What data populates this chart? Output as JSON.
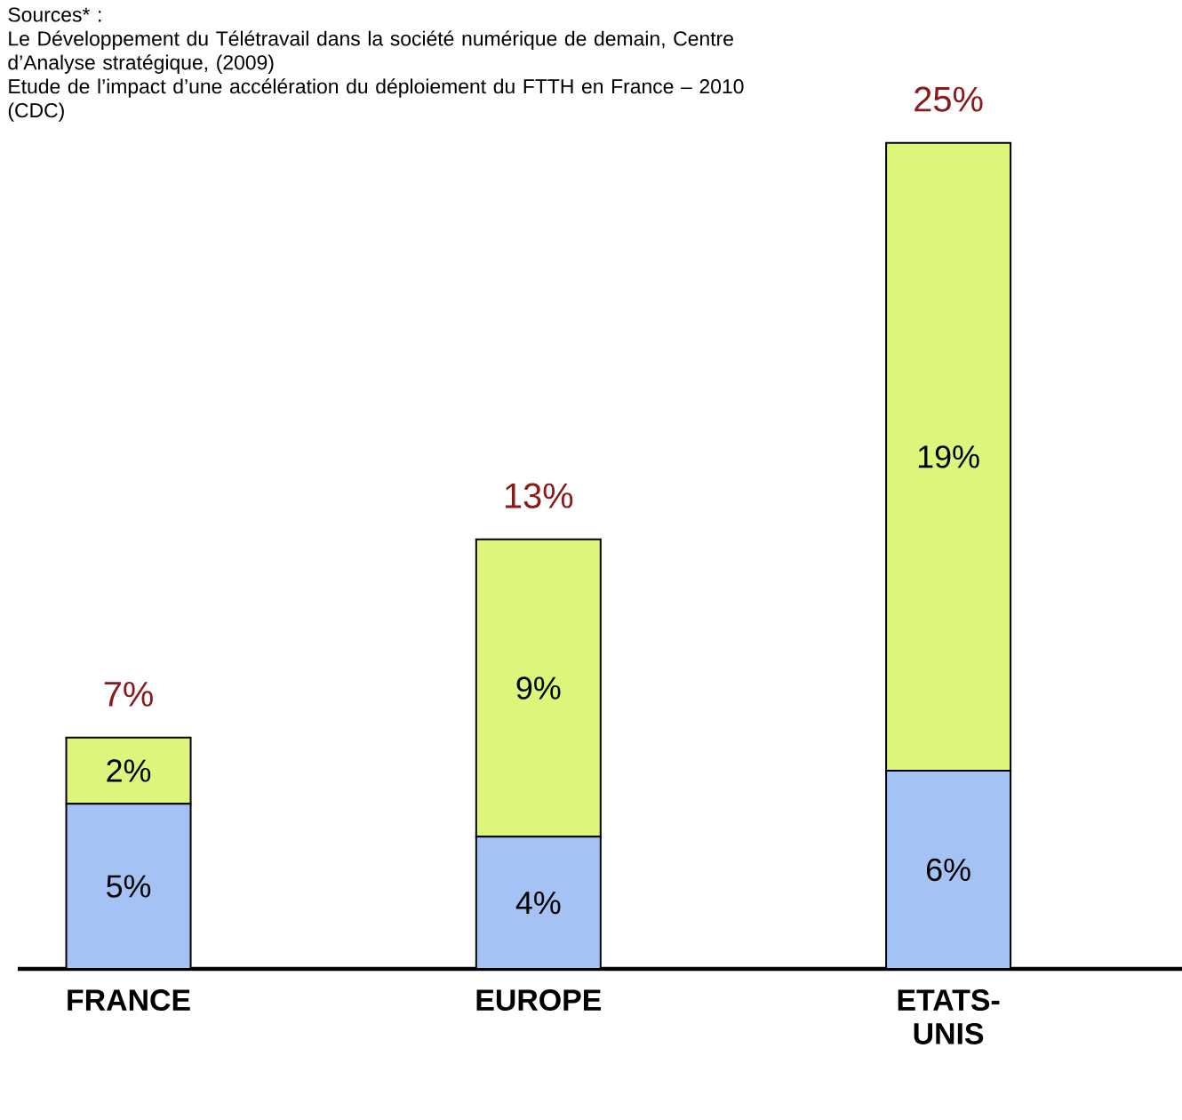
{
  "chart_data": {
    "type": "bar",
    "stacked": true,
    "categories": [
      "FRANCE",
      "EUROPE",
      "ETATS-UNIS"
    ],
    "series": [
      {
        "color": "#a4c2f4",
        "values": [
          5,
          4,
          6
        ],
        "value_labels": [
          "5%",
          "4%",
          "6%"
        ]
      },
      {
        "color": "#dcf57a",
        "values": [
          2,
          9,
          19
        ],
        "value_labels": [
          "2%",
          "9%",
          "19%"
        ]
      }
    ],
    "totals": [
      "7%",
      "13%",
      "25%"
    ],
    "annotations": [
      "Sources* :",
      "Le Développement du Télétravail dans la société numérique de demain, Centre d’Analyse stratégique, (2009)",
      "Etude de l’impact d’une accélération du déploiement du FTTH en France – 2010 (CDC)"
    ]
  }
}
